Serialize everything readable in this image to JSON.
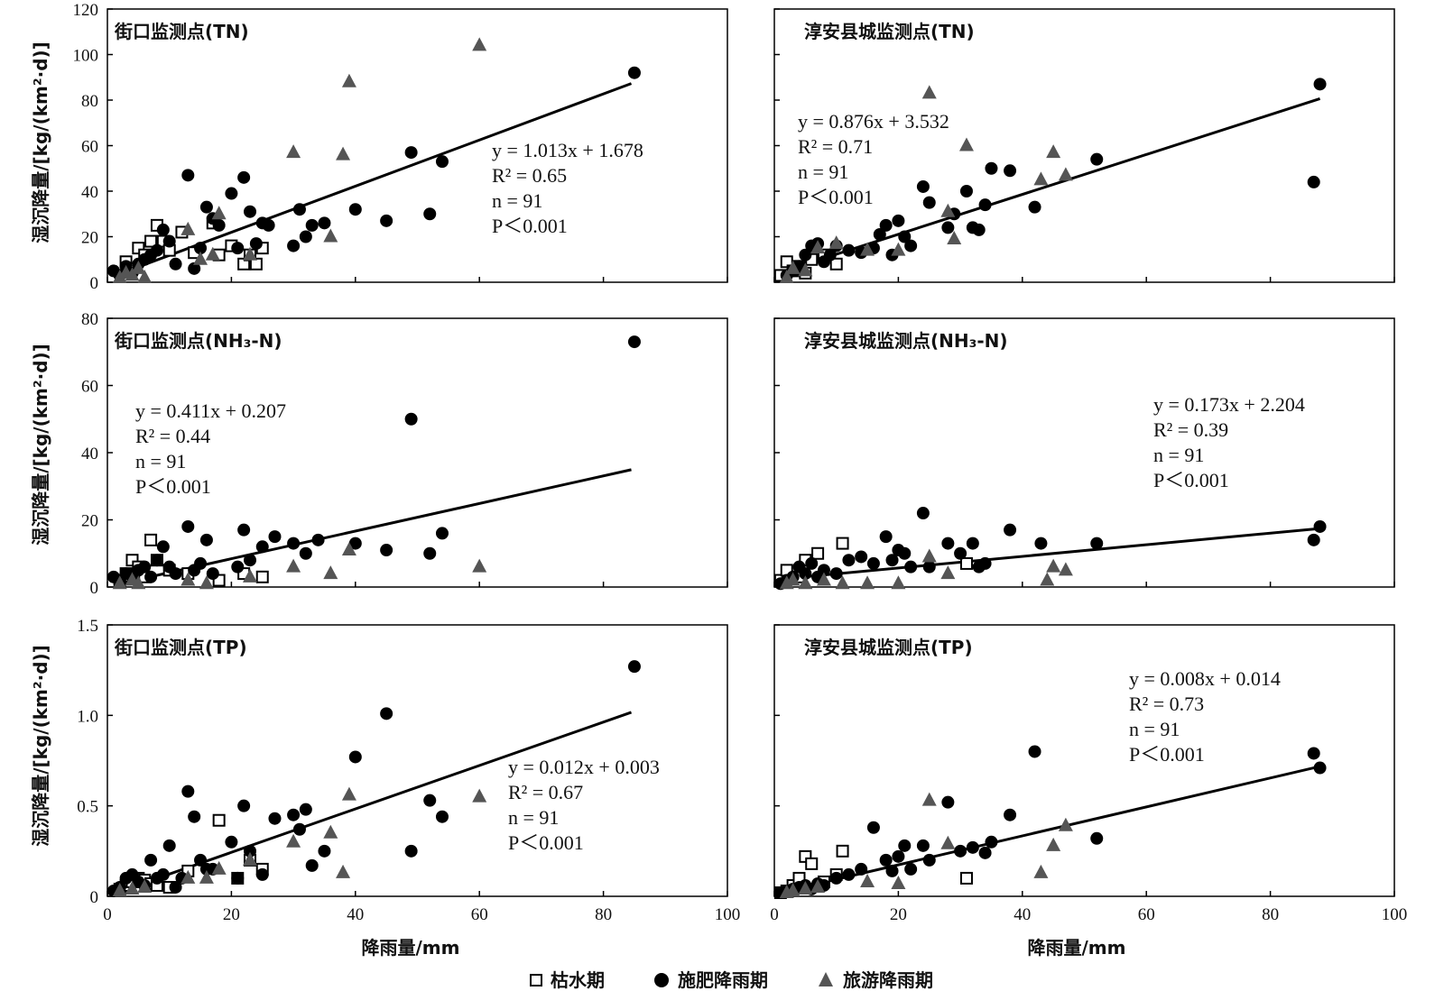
{
  "figure": {
    "ylabel": "湿沉降量/[kg/(km²·d)]",
    "xlabel": "降雨量/mm",
    "legend": [
      {
        "label": "枯水期",
        "marker": "square-open",
        "color": "#000000"
      },
      {
        "label": "施肥降雨期",
        "marker": "circle",
        "color": "#000000"
      },
      {
        "label": "旅游降雨期",
        "marker": "triangle",
        "color": "#555555"
      }
    ]
  },
  "chart_data": [
    {
      "type": "scatter",
      "title": "街口监测点(TN)",
      "xlim": [
        0,
        100
      ],
      "ylim": [
        0,
        120
      ],
      "xticks": [
        "0",
        "20",
        "40",
        "60",
        "80",
        "100"
      ],
      "yticks": [
        "0",
        "20",
        "40",
        "60",
        "80",
        "100",
        "120"
      ],
      "fit": {
        "slope": 1.013,
        "intercept": 1.678,
        "x": [
          1,
          84.5
        ]
      },
      "stats": {
        "eq": "y = 1.013x + 1.678",
        "r2": "R² = 0.65",
        "n": "n = 91",
        "p": "P＜0.001"
      },
      "series": [
        {
          "name": "枯水期",
          "marker": "square-open",
          "x": [
            3,
            4,
            5,
            6,
            7,
            8,
            9,
            10,
            12,
            14,
            17,
            18,
            20,
            22,
            23,
            24,
            25
          ],
          "y": [
            9,
            6,
            15,
            12,
            18,
            25,
            18,
            14,
            22,
            13,
            26,
            12,
            16,
            8,
            12,
            8,
            15
          ]
        },
        {
          "name": "施肥降雨期",
          "marker": "circle",
          "x": [
            1,
            2,
            3,
            4,
            5,
            6,
            7,
            8,
            9,
            10,
            11,
            13,
            14,
            15,
            16,
            17,
            18,
            20,
            21,
            22,
            23,
            24,
            25,
            26,
            30,
            31,
            32,
            33,
            35,
            40,
            45,
            49,
            52,
            54,
            85
          ],
          "y": [
            5,
            3,
            7,
            4,
            8,
            10,
            12,
            14,
            23,
            18,
            8,
            47,
            6,
            15,
            33,
            28,
            25,
            39,
            15,
            46,
            31,
            17,
            26,
            25,
            16,
            32,
            20,
            25,
            26,
            32,
            27,
            57,
            30,
            53,
            92
          ]
        },
        {
          "name": "旅游降雨期",
          "marker": "triangle",
          "x": [
            2,
            3,
            4,
            5,
            6,
            13,
            15,
            17,
            18,
            23,
            30,
            36,
            38,
            39,
            60
          ],
          "y": [
            2,
            4,
            3,
            6,
            2,
            23,
            10,
            12,
            30,
            12,
            57,
            20,
            56,
            88,
            104
          ]
        }
      ]
    },
    {
      "type": "scatter",
      "title": "淳安县城监测点(TN)",
      "xlim": [
        0,
        100
      ],
      "ylim": [
        0,
        120
      ],
      "xticks": [
        "0",
        "20",
        "40",
        "60",
        "80",
        "100"
      ],
      "yticks": [],
      "fit": {
        "slope": 0.876,
        "intercept": 3.532,
        "x": [
          1,
          88
        ]
      },
      "stats": {
        "eq": "y = 0.876x + 3.532",
        "r2": "R² = 0.71",
        "n": "n = 91",
        "p": "P＜0.001"
      },
      "series": [
        {
          "name": "枯水期",
          "marker": "square-open",
          "x": [
            1,
            2,
            3,
            4,
            5,
            6,
            8,
            10
          ],
          "y": [
            3,
            9,
            5,
            7,
            4,
            10,
            12,
            8
          ]
        },
        {
          "name": "施肥降雨期",
          "marker": "circle",
          "x": [
            2,
            3,
            4,
            5,
            6,
            7,
            8,
            9,
            10,
            12,
            14,
            16,
            17,
            18,
            19,
            20,
            21,
            22,
            24,
            25,
            28,
            29,
            31,
            32,
            33,
            34,
            35,
            38,
            42,
            52,
            87,
            88
          ],
          "y": [
            3,
            5,
            7,
            12,
            16,
            17,
            9,
            12,
            16,
            14,
            13,
            15,
            21,
            25,
            12,
            27,
            20,
            16,
            42,
            35,
            24,
            30,
            40,
            24,
            23,
            34,
            50,
            49,
            33,
            54,
            44,
            87
          ]
        },
        {
          "name": "旅游降雨期",
          "marker": "triangle",
          "x": [
            2,
            3,
            5,
            7,
            10,
            15,
            20,
            25,
            28,
            29,
            31,
            43,
            45,
            47
          ],
          "y": [
            2,
            6,
            5,
            15,
            17,
            14,
            14,
            83,
            31,
            19,
            60,
            45,
            57,
            47
          ]
        }
      ]
    },
    {
      "type": "scatter",
      "title": "街口监测点(NH₃-N)",
      "xlim": [
        0,
        100
      ],
      "ylim": [
        0,
        80
      ],
      "xticks": [
        "0",
        "20",
        "40",
        "60",
        "80",
        "100"
      ],
      "yticks": [
        "0",
        "20",
        "40",
        "60",
        "80"
      ],
      "fit": {
        "slope": 0.411,
        "intercept": 0.207,
        "x": [
          1,
          84.5
        ]
      },
      "stats": {
        "eq": "y = 0.411x + 0.207",
        "r2": "R² = 0.44",
        "n": "n = 91",
        "p": "P＜0.001"
      },
      "series": [
        {
          "name": "枯水期",
          "marker": "square-open",
          "x": [
            2,
            3,
            4,
            5,
            6,
            7,
            8,
            10,
            13,
            18,
            22,
            25
          ],
          "y": [
            2,
            4,
            8,
            6,
            3,
            14,
            8,
            5,
            4,
            2,
            4,
            3
          ]
        },
        {
          "name": "施肥降雨期",
          "marker": "circle",
          "x": [
            1,
            2,
            3,
            4,
            5,
            6,
            7,
            8,
            9,
            10,
            11,
            13,
            14,
            15,
            16,
            17,
            21,
            22,
            23,
            25,
            27,
            30,
            32,
            34,
            40,
            45,
            49,
            52,
            54,
            85
          ],
          "y": [
            3,
            2,
            4,
            3,
            5,
            6,
            3,
            8,
            12,
            6,
            4,
            18,
            5,
            7,
            14,
            4,
            6,
            17,
            8,
            12,
            15,
            13,
            10,
            14,
            13,
            11,
            50,
            10,
            16,
            73
          ]
        },
        {
          "name": "旅游降雨期",
          "marker": "triangle",
          "x": [
            2,
            4,
            5,
            13,
            16,
            23,
            30,
            36,
            39,
            60
          ],
          "y": [
            1,
            2,
            1,
            2,
            1,
            3,
            6,
            4,
            11,
            6
          ]
        }
      ]
    },
    {
      "type": "scatter",
      "title": "淳安县城监测点(NH₃-N)",
      "xlim": [
        0,
        100
      ],
      "ylim": [
        0,
        80
      ],
      "xticks": [
        "0",
        "20",
        "40",
        "60",
        "80",
        "100"
      ],
      "yticks": [],
      "fit": {
        "slope": 0.173,
        "intercept": 2.204,
        "x": [
          1,
          88
        ]
      },
      "stats": {
        "eq": "y = 0.173x + 2.204",
        "r2": "R² = 0.39",
        "n": "n = 91",
        "p": "P＜0.001"
      },
      "series": [
        {
          "name": "枯水期",
          "marker": "square-open",
          "x": [
            1,
            2,
            4,
            5,
            7,
            11,
            31
          ],
          "y": [
            2,
            5,
            3,
            8,
            10,
            13,
            7
          ]
        },
        {
          "name": "施肥降雨期",
          "marker": "circle",
          "x": [
            1,
            2,
            3,
            4,
            5,
            6,
            7,
            8,
            10,
            12,
            14,
            16,
            18,
            19,
            20,
            21,
            22,
            24,
            25,
            28,
            30,
            32,
            33,
            34,
            38,
            43,
            52,
            87,
            88
          ],
          "y": [
            1,
            2,
            3,
            6,
            4,
            7,
            3,
            5,
            4,
            8,
            9,
            7,
            15,
            8,
            11,
            10,
            6,
            22,
            6,
            13,
            10,
            13,
            6,
            7,
            17,
            13,
            13,
            14,
            18
          ]
        },
        {
          "name": "旅游降雨期",
          "marker": "triangle",
          "x": [
            2,
            3,
            5,
            8,
            11,
            15,
            20,
            25,
            28,
            44,
            45,
            47
          ],
          "y": [
            1,
            2,
            1,
            2,
            1,
            1,
            1,
            9,
            4,
            2,
            6,
            5
          ]
        }
      ]
    },
    {
      "type": "scatter",
      "title": "街口监测点(TP)",
      "xlim": [
        0,
        100
      ],
      "ylim": [
        0,
        1.5
      ],
      "xticks": [
        "0",
        "20",
        "40",
        "60",
        "80",
        "100"
      ],
      "yticks": [
        "0",
        "0.5",
        "1.0",
        "1.5"
      ],
      "fit": {
        "slope": 0.012,
        "intercept": 0.003,
        "x": [
          1,
          84.5
        ]
      },
      "stats": {
        "eq": "y = 0.012x + 0.003",
        "r2": "R² = 0.67",
        "n": "n = 91",
        "p": "P＜0.001"
      },
      "series": [
        {
          "name": "枯水期",
          "marker": "square-open",
          "x": [
            2,
            3,
            4,
            5,
            6,
            7,
            8,
            10,
            13,
            18,
            21,
            23,
            25
          ],
          "y": [
            0.04,
            0.06,
            0.08,
            0.1,
            0.09,
            0.07,
            0.06,
            0.05,
            0.14,
            0.42,
            0.1,
            0.2,
            0.15
          ]
        },
        {
          "name": "施肥降雨期",
          "marker": "circle",
          "x": [
            1,
            2,
            3,
            4,
            5,
            6,
            7,
            8,
            9,
            10,
            11,
            12,
            13,
            14,
            15,
            16,
            17,
            20,
            21,
            22,
            23,
            25,
            27,
            30,
            31,
            32,
            33,
            35,
            40,
            45,
            49,
            52,
            54,
            85
          ],
          "y": [
            0.03,
            0.05,
            0.1,
            0.12,
            0.08,
            0.06,
            0.2,
            0.1,
            0.12,
            0.28,
            0.05,
            0.1,
            0.58,
            0.44,
            0.2,
            0.15,
            0.15,
            0.3,
            0.1,
            0.5,
            0.25,
            0.12,
            0.43,
            0.45,
            0.37,
            0.48,
            0.17,
            0.25,
            0.77,
            1.01,
            0.25,
            0.53,
            0.44,
            1.27
          ]
        },
        {
          "name": "旅游降雨期",
          "marker": "triangle",
          "x": [
            2,
            4,
            6,
            13,
            16,
            18,
            23,
            30,
            36,
            38,
            39,
            60
          ],
          "y": [
            0.03,
            0.04,
            0.05,
            0.1,
            0.1,
            0.15,
            0.2,
            0.3,
            0.35,
            0.13,
            0.56,
            0.55
          ]
        }
      ]
    },
    {
      "type": "scatter",
      "title": "淳安县城监测点(TP)",
      "xlim": [
        0,
        100
      ],
      "ylim": [
        0,
        1.5
      ],
      "xticks": [
        "0",
        "20",
        "40",
        "60",
        "80",
        "100"
      ],
      "yticks": [],
      "fit": {
        "slope": 0.008,
        "intercept": 0.014,
        "x": [
          1,
          88
        ]
      },
      "stats": {
        "eq": "y = 0.008x + 0.014",
        "r2": "R² = 0.73",
        "n": "n = 91",
        "p": "P＜0.001"
      },
      "series": [
        {
          "name": "枯水期",
          "marker": "square-open",
          "x": [
            1,
            2,
            3,
            4,
            5,
            6,
            8,
            10,
            11,
            31
          ],
          "y": [
            0.02,
            0.03,
            0.06,
            0.1,
            0.22,
            0.18,
            0.08,
            0.12,
            0.25,
            0.1
          ]
        },
        {
          "name": "施肥降雨期",
          "marker": "circle",
          "x": [
            1,
            2,
            3,
            4,
            5,
            6,
            7,
            8,
            10,
            12,
            14,
            16,
            18,
            19,
            20,
            21,
            22,
            24,
            25,
            28,
            30,
            32,
            34,
            35,
            38,
            42,
            52,
            87,
            88
          ],
          "y": [
            0.02,
            0.03,
            0.04,
            0.05,
            0.06,
            0.04,
            0.07,
            0.06,
            0.1,
            0.12,
            0.15,
            0.38,
            0.2,
            0.14,
            0.22,
            0.28,
            0.15,
            0.28,
            0.2,
            0.52,
            0.25,
            0.27,
            0.24,
            0.3,
            0.45,
            0.8,
            0.32,
            0.79,
            0.71
          ]
        },
        {
          "name": "旅游降雨期",
          "marker": "triangle",
          "x": [
            2,
            3,
            5,
            7,
            15,
            20,
            25,
            28,
            43,
            45,
            47
          ],
          "y": [
            0.02,
            0.03,
            0.04,
            0.05,
            0.08,
            0.07,
            0.53,
            0.29,
            0.13,
            0.28,
            0.39
          ]
        }
      ]
    }
  ]
}
